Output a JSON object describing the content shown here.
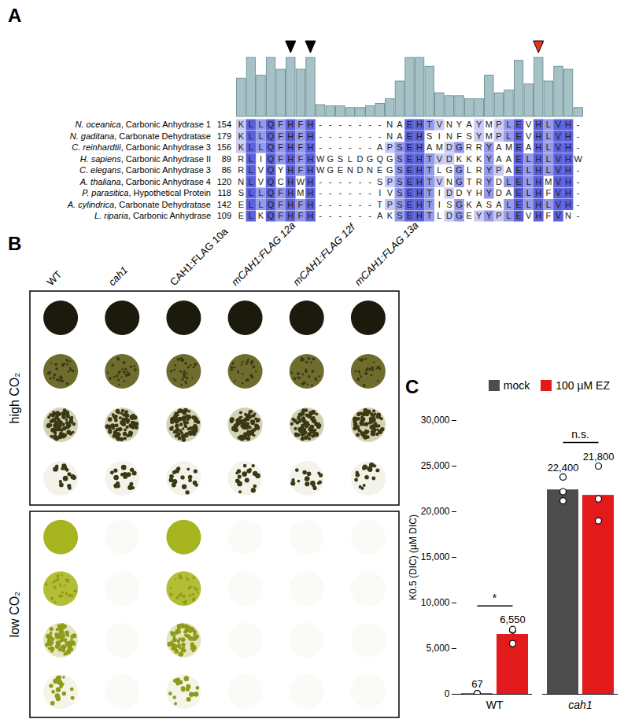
{
  "panel_labels": [
    "A",
    "B",
    "C"
  ],
  "alignment": {
    "conservation": [
      65,
      100,
      70,
      100,
      80,
      100,
      80,
      100,
      20,
      18,
      18,
      15,
      15,
      18,
      22,
      30,
      60,
      100,
      100,
      85,
      40,
      35,
      35,
      30,
      30,
      70,
      40,
      45,
      95,
      55,
      100,
      60,
      85,
      80,
      15
    ],
    "markers": [
      {
        "column": 6,
        "color": "#000000"
      },
      {
        "column": 8,
        "color": "#000000"
      },
      {
        "column": 31,
        "color": "#e8321e"
      }
    ],
    "rows": [
      {
        "name": "N. oceanica, Carbonic Anhydrase 1",
        "start": 154,
        "sequence": "KLLQFHFH-------NAEHTVNYAYMPLEVHLVH-"
      },
      {
        "name": "N. gaditana, Carbonate Dehydratase",
        "start": 179,
        "sequence": "KLLQFHFH-------NAEHSINFSYMPLEVHLVH-"
      },
      {
        "name": "C. reinhardtii, Carbonic Anhydrase 3",
        "start": 156,
        "sequence": "KLLQFHFH------APSEHAMDGRRYAMEAHLVH-"
      },
      {
        "name": "H. sapiens, Carbonic Anhydrase II",
        "start": 89,
        "sequence": "RLIQFHFHWGSLDGQGSEHTVDKKKYAAELHLVHW"
      },
      {
        "name": "C. elegans, Carbonic Anhydrase 3",
        "start": 86,
        "sequence": "RLVQYHFHWGENDNEGSEHTLGGLRYPAELHLVH-"
      },
      {
        "name": "A. thaliana, Carbonic Anhydrase 4",
        "start": 120,
        "sequence": "NLVQCHWH------SPSEHTVNGTRYDLELHMVH-"
      },
      {
        "name": "P. parasitica, Hypothetical Protein",
        "start": 118,
        "sequence": "SLLQFHMH------IVSEHTIDDYHYDAELHFVH-"
      },
      {
        "name": "A. cylindrica, Carbonate Dehydratase",
        "start": 142,
        "sequence": "ELLQFHFH------TPSEHTISGKASALELHLVH-"
      },
      {
        "name": "L. riparia, Carbonic Anhydrase",
        "start": 109,
        "sequence": "ELKQFHFH------AKSEHTLDGEYYPLEVHFVN-"
      }
    ]
  },
  "spot_assay": {
    "strains": [
      "WT",
      "cah1",
      "CAH1:FLAG 10a",
      "mCAH1:FLAG 12a",
      "mCAH1:FLAG 12f",
      "mCAH1:FLAG 13a"
    ],
    "conditions": [
      {
        "label": "high CO₂",
        "growth": [
          [
            true,
            true,
            true,
            true
          ],
          [
            true,
            true,
            true,
            true
          ],
          [
            true,
            true,
            true,
            true
          ],
          [
            true,
            true,
            true,
            true
          ],
          [
            true,
            true,
            true,
            true
          ],
          [
            true,
            true,
            true,
            true
          ]
        ]
      },
      {
        "label": "low CO₂",
        "growth": [
          [
            true,
            true,
            true,
            true
          ],
          [
            false,
            false,
            false,
            false
          ],
          [
            true,
            true,
            true,
            true
          ],
          [
            false,
            false,
            false,
            false
          ],
          [
            false,
            false,
            false,
            false
          ],
          [
            false,
            false,
            false,
            false
          ]
        ]
      }
    ]
  },
  "chart_data": {
    "type": "bar",
    "categories": [
      "WT",
      "cah1"
    ],
    "series": [
      {
        "name": "mock",
        "color": "#4d4d4d",
        "values": [
          67,
          22400
        ],
        "value_labels": [
          "67",
          "22,400"
        ],
        "points": [
          [
            60,
            67,
            74
          ],
          [
            21200,
            22200,
            23800
          ]
        ]
      },
      {
        "name": "100 µM EZ",
        "color": "#e31a1c",
        "values": [
          6550,
          21800
        ],
        "value_labels": [
          "6,550",
          "21,800"
        ],
        "points": [
          [
            5550,
            7000,
            7100
          ],
          [
            19000,
            21400,
            25000
          ]
        ]
      }
    ],
    "ylabel": "K0.5 (DIC) (µM DIC)",
    "ylim": [
      0,
      30000
    ],
    "yticks": [
      0,
      {
        "value": 5000,
        "label": "5,000"
      },
      {
        "value": 10000,
        "label": "10,000"
      },
      {
        "value": 15000,
        "label": "15,000"
      },
      {
        "value": 20000,
        "label": "20,000"
      },
      {
        "value": 25000,
        "label": "25,000"
      },
      {
        "value": 30000,
        "label": "30,000"
      }
    ],
    "data_labels": true,
    "legend": "top",
    "annotations": [
      {
        "category": "WT",
        "text": "*"
      },
      {
        "category": "cah1",
        "text": "n.s."
      }
    ]
  }
}
